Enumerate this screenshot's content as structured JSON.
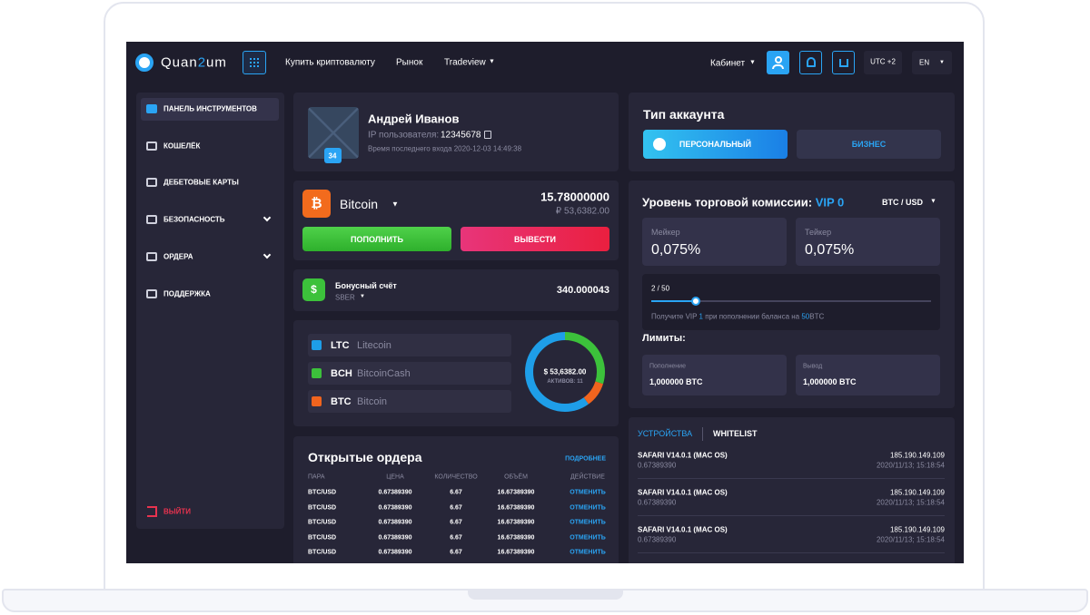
{
  "header": {
    "logo": [
      "Quan",
      "2",
      "um"
    ],
    "nav": [
      "Купить криптовалюту",
      "Рынок",
      "Tradeview"
    ],
    "cabinet": "Кабинет",
    "timezone": "UTC +2",
    "lang": "EN"
  },
  "sidebar": {
    "items": [
      "ПАНЕЛЬ ИНСТРУМЕНТОВ",
      "КОШЕЛЁК",
      "ДЕБЕТОВЫЕ КАРТЫ",
      "БЕЗОПАСНОСТЬ",
      "ОРДЕРА",
      "ПОДДЕРЖКА"
    ],
    "logout": "ВЫЙТИ"
  },
  "profile": {
    "name": "Андрей Иванов",
    "id_label": "IP пользователя:",
    "id": "12345678",
    "last_login": "Время последнего входа 2020-12-03 14:49:38",
    "level": "34"
  },
  "wallet": {
    "coin": "Bitcoin",
    "amount": "15.78000000",
    "fiat": "₽ 53,6382.00",
    "deposit": "ПОПОЛНИТЬ",
    "withdraw": "ВЫВЕСТИ"
  },
  "bonus": {
    "title": "Бонусный счёт",
    "sub": "SBER",
    "amount": "340.000043"
  },
  "assets": {
    "items": [
      {
        "ticker": "LTC",
        "name": "Litecoin",
        "color": "#1e9ee8"
      },
      {
        "ticker": "BCH",
        "name": "BitcoinCash",
        "color": "#3cc13b"
      },
      {
        "ticker": "BTC",
        "name": "Bitcoin",
        "color": "#f0641e"
      }
    ],
    "total": "$ 53,6382.00",
    "count": "АКТИВОВ: 11"
  },
  "orders": {
    "title": "Открытые ордера",
    "more": "ПОДРОБНЕЕ",
    "columns": [
      "ПАРА",
      "ЦЕНА",
      "КОЛИЧЕСТВО",
      "ОБЪЁМ",
      "ДЕЙСТВИЕ"
    ],
    "rows": [
      [
        "BTC/USD",
        "0.67389390",
        "6.67",
        "16.67389390",
        "ОТМЕНИТЬ"
      ],
      [
        "BTC/USD",
        "0.67389390",
        "6.67",
        "16.67389390",
        "ОТМЕНИТЬ"
      ],
      [
        "BTC/USD",
        "0.67389390",
        "6.67",
        "16.67389390",
        "ОТМЕНИТЬ"
      ],
      [
        "BTC/USD",
        "0.67389390",
        "6.67",
        "16.67389390",
        "ОТМЕНИТЬ"
      ],
      [
        "BTC/USD",
        "0.67389390",
        "6.67",
        "16.67389390",
        "ОТМЕНИТЬ"
      ]
    ]
  },
  "account_type": {
    "title": "Тип аккаунта",
    "options": [
      "ПЕРСОНАЛЬНЫЙ",
      "БИЗНЕС"
    ]
  },
  "commission": {
    "title": "Уровень торговой комиссии:",
    "vip": "VIP 0",
    "pair": "BTC / USD",
    "maker_label": "Мейкер",
    "maker": "0,075%",
    "taker_label": "Тейкер",
    "taker": "0,075%",
    "progress": "2 / 50",
    "hint": [
      "Получите VIP ",
      "1",
      " при пополнении баланса на ",
      "50",
      "BTC"
    ],
    "limits_title": "Лимиты:",
    "limits": [
      {
        "label": "Пополнение",
        "value": "1,000000 BTC"
      },
      {
        "label": "Вывод",
        "value": "1,000000 BTC"
      }
    ]
  },
  "devices": {
    "tabs": [
      "УСТРОЙСТВА",
      "WHITELIST"
    ],
    "items": [
      {
        "name": "SAFARI V14.0.1 (MAC OS)",
        "id": "0.67389390",
        "ip": "185.190.149.109",
        "date": "2020/11/13; 15:18:54"
      },
      {
        "name": "SAFARI V14.0.1 (MAC OS)",
        "id": "0.67389390",
        "ip": "185.190.149.109",
        "date": "2020/11/13; 15:18:54"
      },
      {
        "name": "SAFARI V14.0.1 (MAC OS)",
        "id": "0.67389390",
        "ip": "185.190.149.109",
        "date": "2020/11/13; 15:18:54"
      }
    ]
  }
}
